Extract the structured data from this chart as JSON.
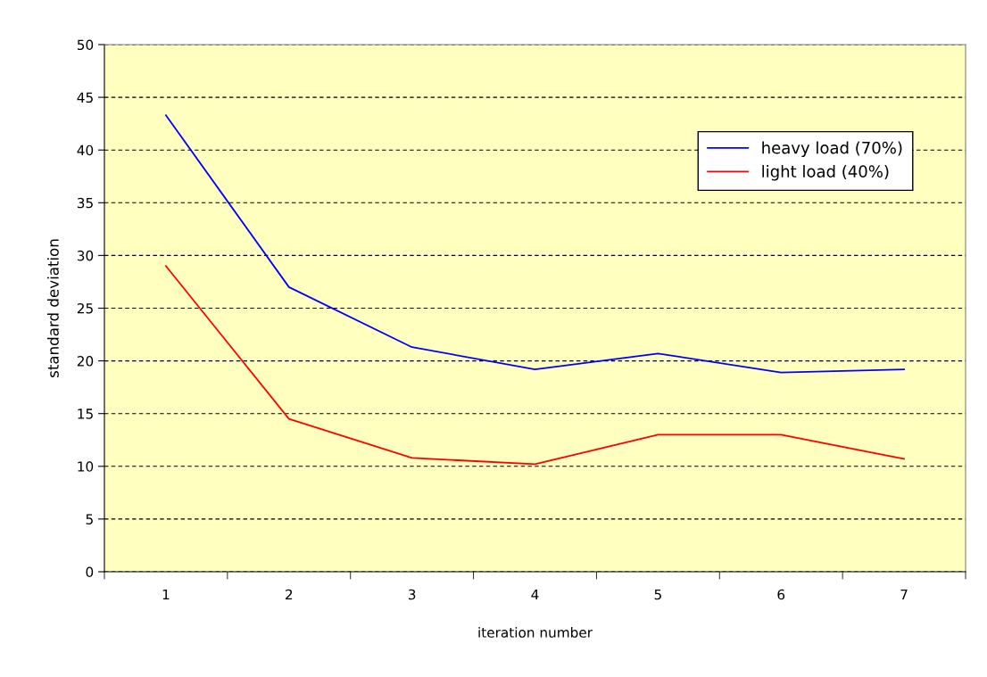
{
  "chart_data": {
    "type": "line",
    "xlabel": "iteration number",
    "ylabel": "standard deviation",
    "categories": [
      "1",
      "2",
      "3",
      "4",
      "5",
      "6",
      "7"
    ],
    "series": [
      {
        "name": "heavy load (70%)",
        "color": "#0000ff",
        "values": [
          43.3,
          27.0,
          21.3,
          19.2,
          20.7,
          18.9,
          19.2
        ]
      },
      {
        "name": "light load (40%)",
        "color": "#ff0000",
        "values": [
          29.0,
          14.5,
          10.8,
          10.2,
          13.0,
          13.0,
          10.7
        ]
      }
    ],
    "ylim": [
      0,
      50
    ],
    "yticks": [
      0,
      5,
      10,
      15,
      20,
      25,
      30,
      35,
      40,
      45,
      50
    ],
    "grid": "y",
    "legend": "top right",
    "marker": "none",
    "line_style": "solid"
  }
}
